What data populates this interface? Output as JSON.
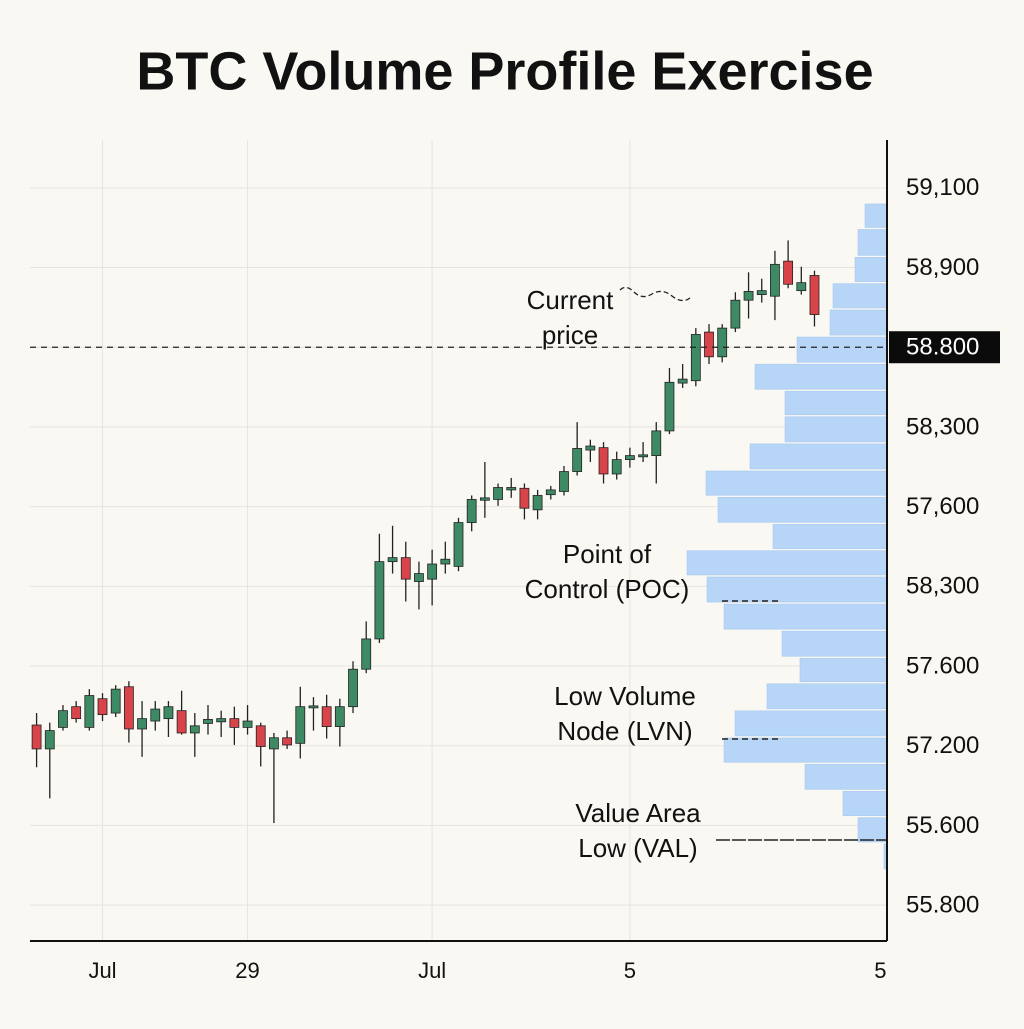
{
  "chart_data": {
    "type": "candlestick",
    "title": "BTC Volume Profile Exercise",
    "categories": [
      null,
      null,
      null,
      null,
      null,
      "Jul",
      null,
      null,
      null,
      null,
      null,
      null,
      null,
      null,
      null,
      null,
      "29",
      null,
      null,
      null,
      null,
      null,
      null,
      null,
      null,
      null,
      null,
      null,
      null,
      null,
      "Jul",
      null,
      null,
      null,
      null,
      null,
      null,
      null,
      null,
      null,
      null,
      null,
      null,
      null,
      null,
      "5",
      null,
      null,
      null,
      null,
      null,
      null,
      null,
      null,
      null,
      null,
      null,
      null,
      null,
      null,
      null,
      null,
      null,
      null,
      "5"
    ],
    "open": [
      2.26,
      1.96,
      2.23,
      2.49,
      2.23,
      2.59,
      2.41,
      2.74,
      2.21,
      2.31,
      2.34,
      2.44,
      2.16,
      2.28,
      2.3,
      2.34,
      2.23,
      2.25,
      1.96,
      2.1,
      2.03,
      2.48,
      2.49,
      2.24,
      2.49,
      2.96,
      3.34,
      4.31,
      4.36,
      4.06,
      4.09,
      4.28,
      4.25,
      4.8,
      5.08,
      5.09,
      5.21,
      5.23,
      4.96,
      5.15,
      5.19,
      5.44,
      5.71,
      5.74,
      5.41,
      5.59,
      5.63,
      5.64,
      5.95,
      6.55,
      6.58,
      7.19,
      6.88,
      7.24,
      7.59,
      7.66,
      7.64,
      8.08,
      7.71,
      7.9,
      null,
      null,
      null,
      null,
      null
    ],
    "high": [
      2.41,
      2.29,
      2.51,
      2.56,
      2.71,
      2.66,
      2.76,
      2.81,
      2.56,
      2.56,
      2.56,
      2.69,
      2.41,
      2.51,
      2.44,
      2.49,
      2.51,
      2.29,
      2.16,
      2.19,
      2.74,
      2.61,
      2.64,
      2.59,
      3.06,
      3.56,
      4.66,
      4.76,
      4.56,
      4.31,
      4.46,
      4.56,
      4.86,
      5.14,
      5.56,
      5.29,
      5.36,
      5.29,
      5.21,
      5.26,
      5.51,
      6.06,
      5.84,
      5.81,
      5.69,
      5.74,
      5.81,
      6.06,
      6.74,
      6.79,
      7.24,
      7.29,
      7.29,
      7.69,
      7.94,
      7.86,
      8.21,
      8.34,
      8.01,
      7.96,
      null,
      null,
      null,
      null,
      null
    ],
    "low": [
      1.73,
      1.34,
      2.19,
      2.29,
      2.19,
      2.31,
      2.36,
      2.04,
      1.86,
      2.19,
      2.11,
      2.14,
      1.86,
      2.14,
      2.11,
      2.01,
      2.14,
      1.74,
      1.03,
      1.96,
      1.84,
      2.19,
      2.09,
      1.99,
      2.41,
      2.91,
      3.29,
      4.16,
      3.81,
      3.71,
      3.76,
      4.16,
      4.19,
      4.69,
      4.86,
      5.01,
      5.11,
      4.84,
      4.84,
      5.09,
      5.14,
      5.39,
      5.56,
      5.29,
      5.34,
      5.49,
      5.56,
      5.29,
      5.91,
      6.49,
      6.51,
      6.79,
      6.81,
      7.19,
      7.36,
      7.56,
      7.34,
      7.74,
      7.66,
      7.26,
      null,
      null,
      null,
      null,
      null
    ],
    "close": [
      1.96,
      2.19,
      2.44,
      2.34,
      2.63,
      2.39,
      2.71,
      2.21,
      2.34,
      2.46,
      2.49,
      2.16,
      2.25,
      2.33,
      2.34,
      2.23,
      2.31,
      1.99,
      2.1,
      2.01,
      2.49,
      2.5,
      2.24,
      2.49,
      2.96,
      3.34,
      4.31,
      4.36,
      4.09,
      4.16,
      4.28,
      4.34,
      4.8,
      5.09,
      5.11,
      5.24,
      5.24,
      4.98,
      5.14,
      5.21,
      5.44,
      5.73,
      5.76,
      5.41,
      5.59,
      5.64,
      5.65,
      5.95,
      6.56,
      6.6,
      7.16,
      6.88,
      7.24,
      7.59,
      7.7,
      7.71,
      8.04,
      7.79,
      7.81,
      7.41,
      null,
      null,
      null,
      null,
      null
    ],
    "up_color": "#3d8a64",
    "down_color": "#d9434a",
    "ylim": [
      -0.45,
      9.6
    ],
    "y_categories": [
      "59,100",
      "58,900",
      "58.800",
      "58,300",
      "57,600",
      "58,300",
      "57.600",
      "57.200",
      "55.600",
      "55.800"
    ],
    "current_price_tick": 2,
    "grid": true,
    "profile": {
      "bins": [
        8.81,
        8.49,
        8.14,
        7.81,
        7.48,
        7.14,
        6.8,
        6.46,
        6.14,
        5.8,
        5.46,
        5.13,
        4.79,
        4.46,
        4.13,
        3.79,
        3.45,
        3.11,
        2.79,
        2.45,
        2.11,
        1.78,
        1.44,
        1.11,
        0.78,
        0.44
      ],
      "values": [
        22,
        29,
        32,
        54,
        57,
        90,
        132,
        102,
        102,
        137,
        181,
        169,
        114,
        200,
        180,
        163,
        105,
        87,
        120,
        152,
        163,
        82,
        44,
        29,
        3
      ],
      "color": "#b7d5f6"
    },
    "annotations": [
      {
        "lines": [
          "Current",
          "price"
        ]
      },
      {
        "lines": [
          "Point of",
          "Control (POC)"
        ]
      },
      {
        "lines": [
          "Low Volume",
          "Node (LVN)"
        ]
      },
      {
        "lines": [
          "Value Area",
          "Low (VAL)"
        ]
      }
    ]
  }
}
